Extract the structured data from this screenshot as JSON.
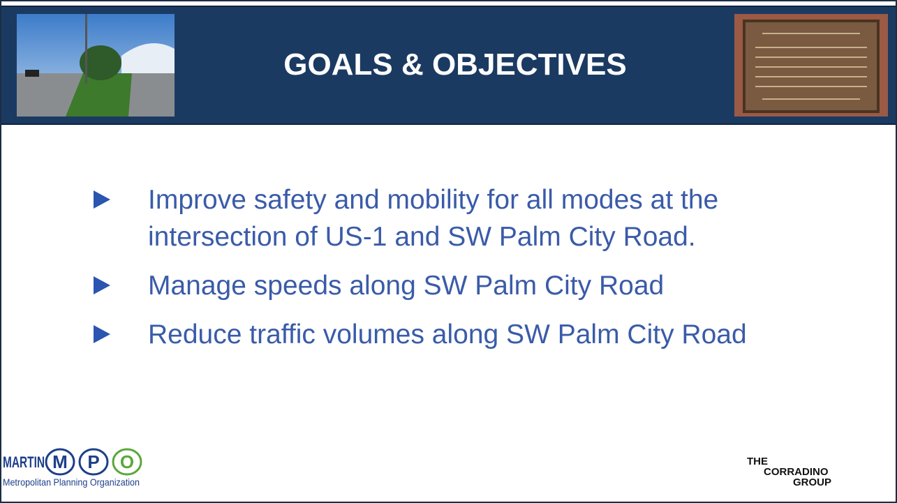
{
  "header": {
    "title": "GOALS & OBJECTIVES"
  },
  "bullets": [
    "Improve safety and mobility for all modes at the intersection of US-1 and SW Palm City Road.",
    "Manage speeds along SW Palm City Road",
    "Reduce traffic volumes along SW Palm City Road"
  ],
  "logos": {
    "mpo": {
      "name": "MARTIN",
      "letters": [
        "M",
        "P",
        "O"
      ],
      "subtitle": "Metropolitan Planning Organization"
    },
    "corradino": {
      "line1": "THE",
      "line2": "CORRADINO",
      "line3": "GROUP"
    }
  }
}
